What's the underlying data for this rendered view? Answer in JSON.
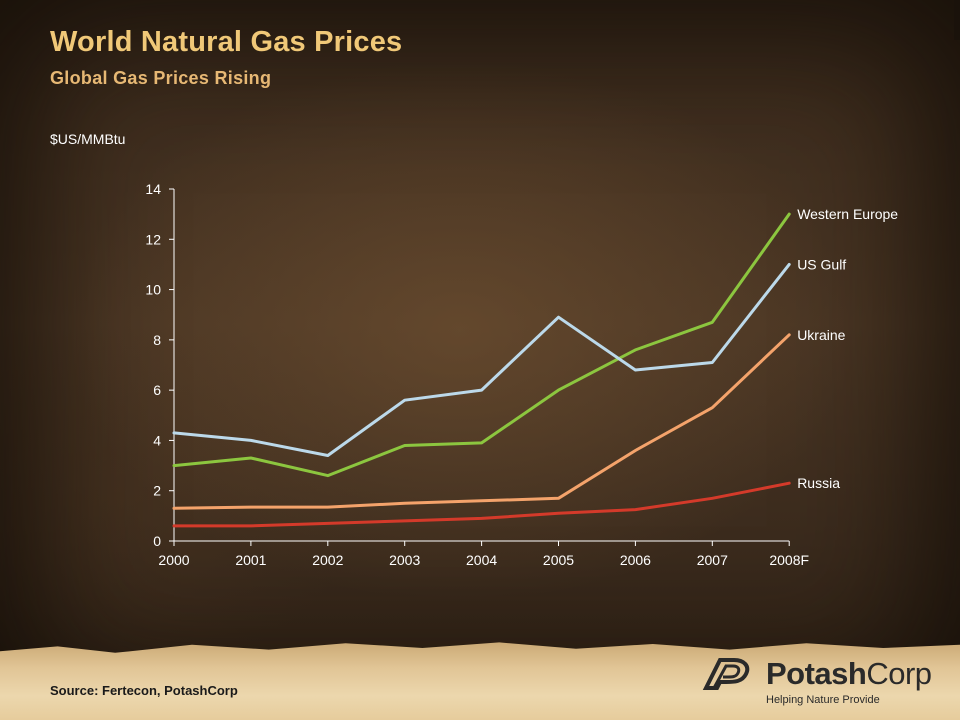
{
  "header": {
    "title": "World Natural Gas Prices",
    "subtitle": "Global Gas Prices Rising",
    "unit_label": "$US/MMBtu"
  },
  "footer": {
    "source": "Source: Fertecon, PotashCorp"
  },
  "logo": {
    "name_part1": "Potash",
    "name_part2": "Corp",
    "tagline": "Helping Nature Provide",
    "icon": "potashcorp-logo-icon"
  },
  "colors": {
    "background": "#3a2a1c",
    "title": "#f0c878",
    "subtitle": "#e7b874",
    "axis": "#ffffff"
  },
  "chart_data": {
    "type": "line",
    "title": "",
    "xlabel": "",
    "ylabel": "$US/MMBtu",
    "categories": [
      "2000",
      "2001",
      "2002",
      "2003",
      "2004",
      "2005",
      "2006",
      "2007",
      "2008F"
    ],
    "ylim": [
      0,
      14
    ],
    "yticks": [
      0,
      2,
      4,
      6,
      8,
      10,
      12,
      14
    ],
    "grid": false,
    "legend": "direct labels at right end of each line",
    "series": [
      {
        "name": "Western Europe",
        "color": "#8cc63f",
        "values": [
          3.0,
          3.3,
          2.6,
          3.8,
          3.9,
          6.0,
          7.6,
          8.7,
          13.0
        ]
      },
      {
        "name": "US Gulf",
        "color": "#bcd9ea",
        "values": [
          4.3,
          4.0,
          3.4,
          5.6,
          6.0,
          8.9,
          6.8,
          7.1,
          11.0
        ]
      },
      {
        "name": "Ukraine",
        "color": "#f4a36b",
        "values": [
          1.3,
          1.35,
          1.35,
          1.5,
          1.6,
          1.7,
          3.6,
          5.3,
          8.2
        ]
      },
      {
        "name": "Russia",
        "color": "#d43a2a",
        "values": [
          0.6,
          0.6,
          0.7,
          0.8,
          0.9,
          1.1,
          1.25,
          1.7,
          2.3
        ]
      }
    ]
  }
}
